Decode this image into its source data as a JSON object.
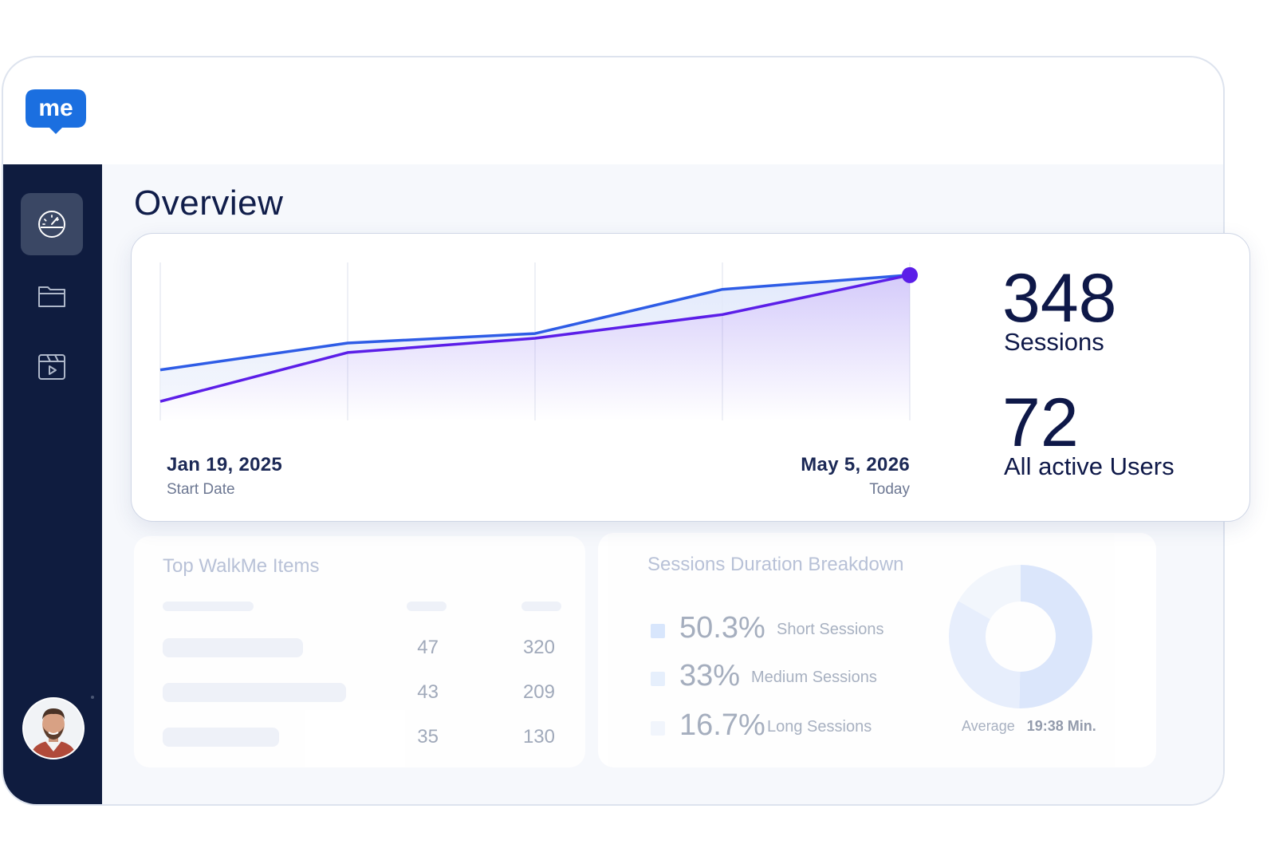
{
  "app": {
    "logo_text": "me"
  },
  "sidebar": {
    "items": [
      {
        "id": "dashboard",
        "icon": "dashboard-gauge-icon",
        "active": true
      },
      {
        "id": "files",
        "icon": "folder-icon",
        "active": false
      },
      {
        "id": "media",
        "icon": "video-box-icon",
        "active": false
      }
    ],
    "avatar": "user-avatar"
  },
  "page": {
    "title": "Overview"
  },
  "overview": {
    "start_date": "Jan 19, 2025",
    "start_label": "Start Date",
    "end_date": "May 5, 2026",
    "end_label": "Today",
    "sessions_value": "348",
    "sessions_label": "Sessions",
    "users_value": "72",
    "users_label": "All active Users",
    "colors": {
      "sessions": "#2e5ce6",
      "users": "#5b1ee8",
      "endpoint": "#5b1ee8"
    }
  },
  "chart_data": {
    "type": "line",
    "x": [
      "Jan 19, 2025",
      "",
      "",
      "",
      "May 5, 2026"
    ],
    "series": [
      {
        "values": [
          0.32,
          0.49,
          0.55,
          0.83,
          0.92
        ]
      },
      {
        "values": [
          0.12,
          0.43,
          0.52,
          0.67,
          0.92
        ]
      }
    ],
    "grid": true
  },
  "top_items": {
    "title": "Top WalkMe Items",
    "rows": [
      {
        "count": "47",
        "total": "320"
      },
      {
        "count": "43",
        "total": "209"
      },
      {
        "count": "35",
        "total": "130"
      }
    ]
  },
  "duration": {
    "title": "Sessions Duration Breakdown",
    "items": [
      {
        "pct": "50.3%",
        "label": "Short Sessions",
        "color": "#d8e6fc"
      },
      {
        "pct": "33%",
        "label": "Medium Sessions",
        "color": "#e6effd"
      },
      {
        "pct": "16.7%",
        "label": "Long Sessions",
        "color": "#f1f5fd"
      }
    ],
    "average_label": "Average",
    "average_value": "19:38 Min."
  }
}
